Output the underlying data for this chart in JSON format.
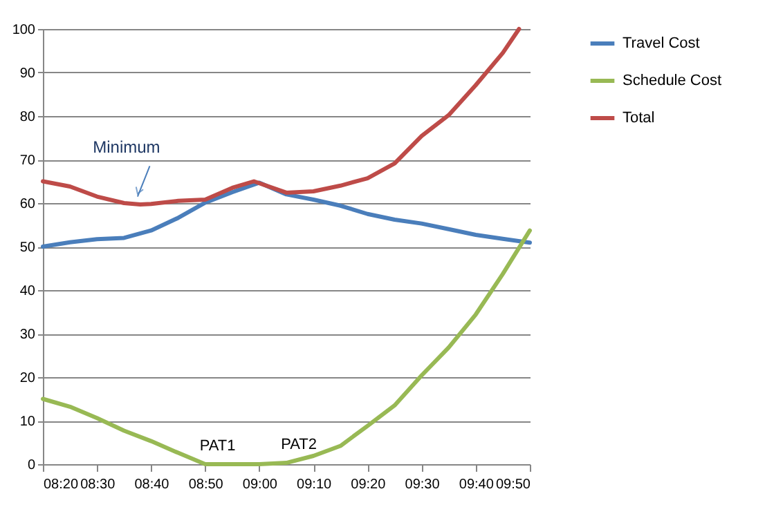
{
  "chart_data": {
    "type": "line",
    "x": [
      8.3333,
      8.4167,
      8.5,
      8.5833,
      8.6667,
      8.75,
      8.8333,
      8.9167,
      9,
      9.0833,
      9.1667,
      9.25,
      9.3333,
      9.4167,
      9.5,
      9.5833,
      9.6667,
      9.75,
      9.8333
    ],
    "series": [
      {
        "name": "Travel Cost",
        "color": "#4a7ebb",
        "values": [
          50,
          51,
          51.7,
          52,
          53.7,
          56.6,
          60.1,
          62.5,
          64.7,
          62,
          60.8,
          59.4,
          57.5,
          56.2,
          55.3,
          54,
          52.7,
          51.8,
          50.9
        ]
      },
      {
        "name": "Schedule Cost",
        "color": "#98b954",
        "values": [
          15,
          13.2,
          10.6,
          7.7,
          5.3,
          2.6,
          0,
          0,
          0,
          0.3,
          1.9,
          4.2,
          8.8,
          13.5,
          20.4,
          26.8,
          34.4,
          43.7,
          53.7
        ]
      },
      {
        "name": "Total",
        "color": "#be4b48",
        "x": [
          8.3333,
          8.4167,
          8.5,
          8.5833,
          8.6333,
          8.6667,
          8.75,
          8.8333,
          8.9167,
          8.9833,
          9.0833,
          9.1667,
          9.25,
          9.3333,
          9.4167,
          9.5,
          9.5833,
          9.6667,
          9.75,
          9.8
        ],
        "values": [
          65,
          63.8,
          61.5,
          60,
          59.7,
          59.8,
          60.5,
          60.8,
          63.5,
          65,
          62.4,
          62.7,
          64,
          65.7,
          69.1,
          75.4,
          80.2,
          87.1,
          94.5,
          100
        ]
      }
    ],
    "xlim": [
      8.3333,
      9.8333
    ],
    "xticks": [
      {
        "value": 8.3333,
        "label": "08:20"
      },
      {
        "value": 8.5,
        "label": "08:30"
      },
      {
        "value": 8.6667,
        "label": "08:40"
      },
      {
        "value": 8.8333,
        "label": "08:50"
      },
      {
        "value": 9,
        "label": "09:00"
      },
      {
        "value": 9.1667,
        "label": "09:10"
      },
      {
        "value": 9.3333,
        "label": "09:20"
      },
      {
        "value": 9.5,
        "label": "09:30"
      },
      {
        "value": 9.6667,
        "label": "09:40"
      },
      {
        "value": 9.8333,
        "label": "09:50"
      }
    ],
    "ylim": [
      0,
      100
    ],
    "yticks": [
      0,
      10,
      20,
      30,
      40,
      50,
      60,
      70,
      80,
      90,
      100
    ],
    "grid": "y",
    "legend": "right",
    "marker": "none",
    "line_style": "solid",
    "annotations": [
      {
        "text": "Minimum",
        "x": 8.625,
        "y": 61.5
      },
      {
        "text": "PAT1",
        "x": 8.8333,
        "y": 0
      },
      {
        "text": "PAT2",
        "x": 9.0833,
        "y": 0.3
      }
    ]
  }
}
